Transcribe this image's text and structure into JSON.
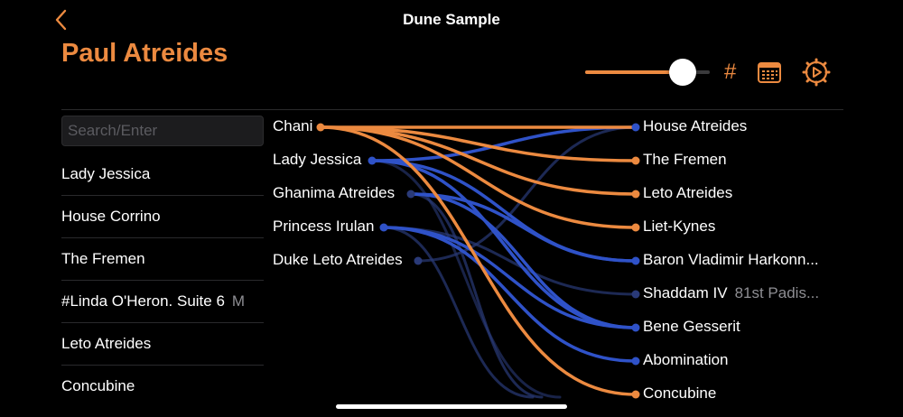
{
  "header": {
    "app_title": "Dune Sample",
    "entity_title": "Paul Atreides",
    "hash_label": "#",
    "back_icon": "chevron-left-icon",
    "calendar_icon": "calendar-icon",
    "settings_icon": "gear-play-icon"
  },
  "slider": {
    "level": 0.78
  },
  "search": {
    "placeholder": "Search/Enter",
    "value": ""
  },
  "sidebar": {
    "items": [
      {
        "label": "Lady Jessica",
        "sub": ""
      },
      {
        "label": "House Corrino",
        "sub": ""
      },
      {
        "label": "The Fremen",
        "sub": ""
      },
      {
        "label": "#Linda O'Heron. Suite 6",
        "sub": "M"
      },
      {
        "label": "Leto Atreides",
        "sub": ""
      },
      {
        "label": "Concubine",
        "sub": ""
      }
    ]
  },
  "graph": {
    "sources": [
      {
        "label": "Chani"
      },
      {
        "label": "Lady Jessica"
      },
      {
        "label": "Ghanima Atreides"
      },
      {
        "label": "Princess Irulan"
      },
      {
        "label": "Duke Leto Atreides"
      }
    ],
    "targets": [
      {
        "label": "House Atreides",
        "sub": ""
      },
      {
        "label": "The Fremen",
        "sub": ""
      },
      {
        "label": "Leto Atreides",
        "sub": ""
      },
      {
        "label": "Liet-Kynes",
        "sub": ""
      },
      {
        "label": "Baron Vladimir Harkonn...",
        "sub": ""
      },
      {
        "label": "Shaddam IV",
        "sub": "81st Padis..."
      },
      {
        "label": "Bene Gesserit",
        "sub": ""
      },
      {
        "label": "Abomination",
        "sub": ""
      },
      {
        "label": "Concubine",
        "sub": ""
      }
    ],
    "colors": {
      "orange": "#ec8a40",
      "blue": "#2f52c8",
      "dim": "#2a3a78"
    }
  }
}
